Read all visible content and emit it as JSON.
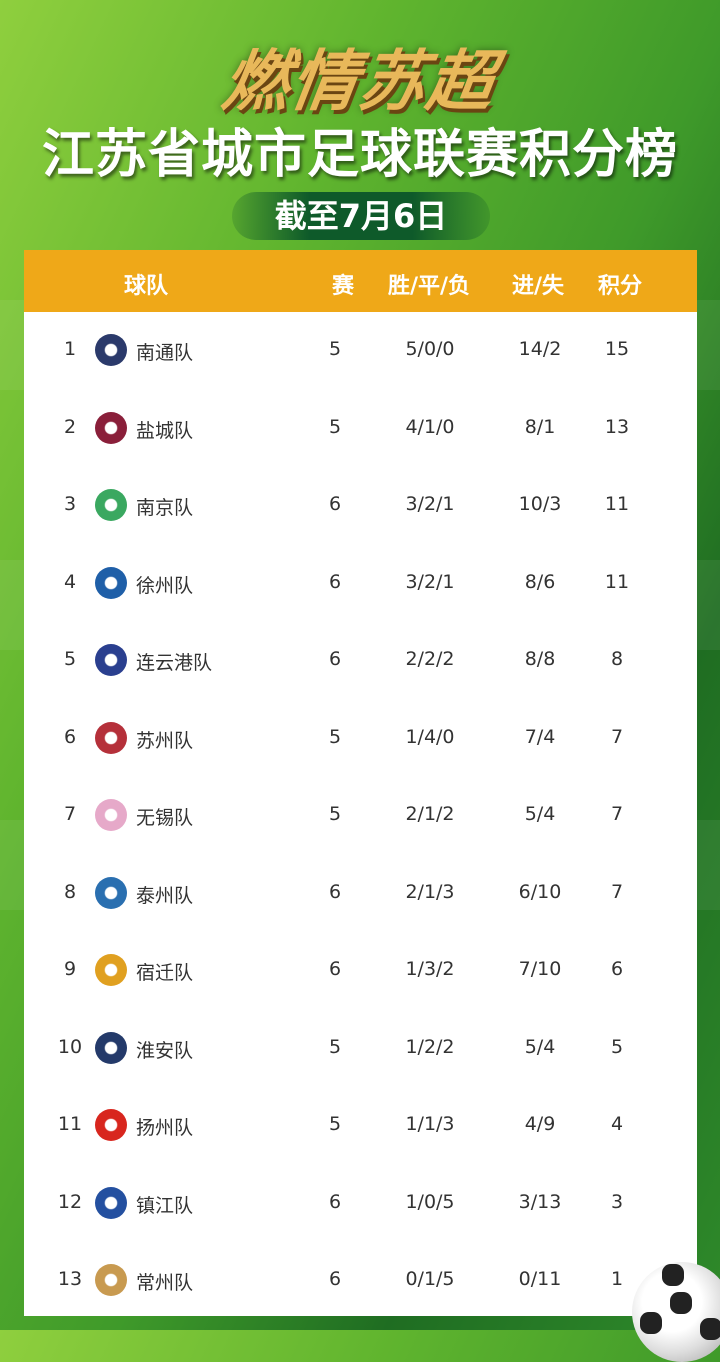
{
  "header": {
    "title": "燃情苏超",
    "subtitle": "江苏省城市足球联赛积分榜",
    "date": "截至7月6日"
  },
  "table": {
    "columns": [
      "球队",
      "赛",
      "胜/平/负",
      "进/失",
      "积分"
    ],
    "rows": [
      {
        "rank": "1",
        "team": "南通队",
        "played": "5",
        "wdl": "5/0/0",
        "goals": "14/2",
        "points": "15",
        "logo_color": "#2b3a6b"
      },
      {
        "rank": "2",
        "team": "盐城队",
        "played": "5",
        "wdl": "4/1/0",
        "goals": "8/1",
        "points": "13",
        "logo_color": "#8a1f3a"
      },
      {
        "rank": "3",
        "team": "南京队",
        "played": "6",
        "wdl": "3/2/1",
        "goals": "10/3",
        "points": "11",
        "logo_color": "#3aa860"
      },
      {
        "rank": "4",
        "team": "徐州队",
        "played": "6",
        "wdl": "3/2/1",
        "goals": "8/6",
        "points": "11",
        "logo_color": "#1f5fa8"
      },
      {
        "rank": "5",
        "team": "连云港队",
        "played": "6",
        "wdl": "2/2/2",
        "goals": "8/8",
        "points": "8",
        "logo_color": "#2a3f8f"
      },
      {
        "rank": "6",
        "team": "苏州队",
        "played": "5",
        "wdl": "1/4/0",
        "goals": "7/4",
        "points": "7",
        "logo_color": "#b5303a"
      },
      {
        "rank": "7",
        "team": "无锡队",
        "played": "5",
        "wdl": "2/1/2",
        "goals": "5/4",
        "points": "7",
        "logo_color": "#e6a9c9"
      },
      {
        "rank": "8",
        "team": "泰州队",
        "played": "6",
        "wdl": "2/1/3",
        "goals": "6/10",
        "points": "7",
        "logo_color": "#2a6fb0"
      },
      {
        "rank": "9",
        "team": "宿迁队",
        "played": "6",
        "wdl": "1/3/2",
        "goals": "7/10",
        "points": "6",
        "logo_color": "#e0a020"
      },
      {
        "rank": "10",
        "team": "淮安队",
        "played": "5",
        "wdl": "1/2/2",
        "goals": "5/4",
        "points": "5",
        "logo_color": "#243a6a"
      },
      {
        "rank": "11",
        "team": "扬州队",
        "played": "5",
        "wdl": "1/1/3",
        "goals": "4/9",
        "points": "4",
        "logo_color": "#d8261e"
      },
      {
        "rank": "12",
        "team": "镇江队",
        "played": "6",
        "wdl": "1/0/5",
        "goals": "3/13",
        "points": "3",
        "logo_color": "#2450a0"
      },
      {
        "rank": "13",
        "team": "常州队",
        "played": "6",
        "wdl": "0/1/5",
        "goals": "0/11",
        "points": "1",
        "logo_color": "#c89a50"
      }
    ]
  },
  "colors": {
    "header_bar": "#efa818",
    "background": "#4fa52c"
  }
}
